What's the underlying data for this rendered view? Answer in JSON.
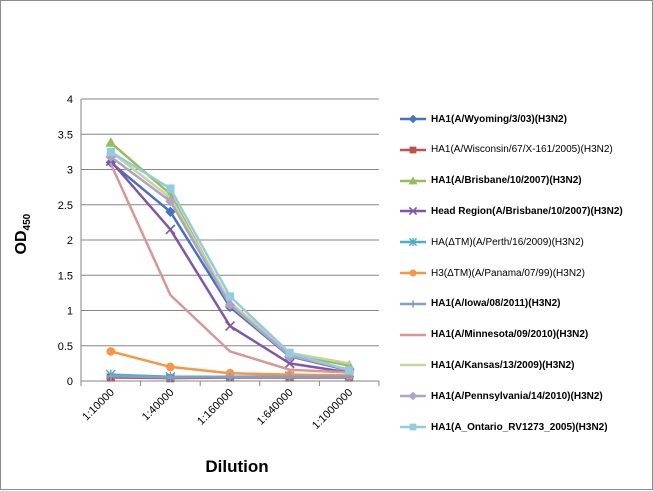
{
  "chart_data": {
    "type": "line",
    "xlabel": "Dilution",
    "ylabel": "OD",
    "ylabel_sub": "450",
    "categories": [
      "1:10000",
      "1:40000",
      "1:160000",
      "1:640000",
      "1:1000000"
    ],
    "ylim": [
      0,
      4
    ],
    "yticks": [
      "0",
      "0.5",
      "1",
      "1.5",
      "2",
      "2.5",
      "3",
      "3.5",
      "4"
    ],
    "grid": "horizontal",
    "legend_position": "right",
    "series": [
      {
        "name": "HA1(A/Wyoming/3/03)(H3N2)",
        "color": "#4472c4",
        "marker": "diamond",
        "bold": true,
        "values": [
          3.1,
          2.4,
          1.05,
          0.35,
          0.15
        ]
      },
      {
        "name": "HA1(A/Wisconsin/67/X-161/2005)(H3N2)",
        "color": "#c0504d",
        "marker": "square",
        "bold": false,
        "values": [
          0.05,
          0.04,
          0.05,
          0.05,
          0.05
        ]
      },
      {
        "name": "HA1(A/Brisbane/10/2007)(H3N2)",
        "color": "#9bbb59",
        "marker": "triangle",
        "bold": true,
        "values": [
          3.38,
          2.65,
          1.1,
          0.38,
          0.22
        ]
      },
      {
        "name": "Head Region(A/Brisbane/10/2007)(H3N2)",
        "color": "#7f56a8",
        "marker": "x",
        "bold": true,
        "values": [
          3.12,
          2.15,
          0.78,
          0.25,
          0.12
        ]
      },
      {
        "name": "HA(ΔTM)(A/Perth/16/2009)(H3N2)",
        "color": "#4bacc6",
        "marker": "star",
        "bold": false,
        "values": [
          0.09,
          0.06,
          0.06,
          0.07,
          0.06
        ]
      },
      {
        "name": "H3(ΔTM)(A/Panama/07/99)(H3N2)",
        "color": "#f79646",
        "marker": "circle",
        "bold": false,
        "values": [
          0.42,
          0.2,
          0.11,
          0.09,
          0.08
        ]
      },
      {
        "name": "HA1(A/Iowa/08/2011)(H3N2)",
        "color": "#7f9fcf",
        "marker": "plus",
        "bold": true,
        "values": [
          0.07,
          0.05,
          0.06,
          0.06,
          0.06
        ]
      },
      {
        "name": "HA1(A/Minnesota/09/2010)(H3N2)",
        "color": "#d99694",
        "marker": "none",
        "bold": true,
        "values": [
          3.08,
          1.22,
          0.42,
          0.16,
          0.12
        ]
      },
      {
        "name": "HA1(A/Kansas/13/2009)(H3N2)",
        "color": "#c3d69b",
        "marker": "none",
        "bold": true,
        "values": [
          3.25,
          2.6,
          1.12,
          0.4,
          0.25
        ]
      },
      {
        "name": "HA1(A/Pennsylvania/14/2010)(H3N2)",
        "color": "#b3a2c7",
        "marker": "diamond",
        "bold": true,
        "values": [
          3.18,
          2.55,
          1.08,
          0.36,
          0.16
        ]
      },
      {
        "name": "HA1(A_Ontario_RV1273_2005)(H3N2)",
        "color": "#93cddd",
        "marker": "square",
        "bold": true,
        "values": [
          3.25,
          2.73,
          1.2,
          0.4,
          0.15
        ]
      }
    ]
  }
}
